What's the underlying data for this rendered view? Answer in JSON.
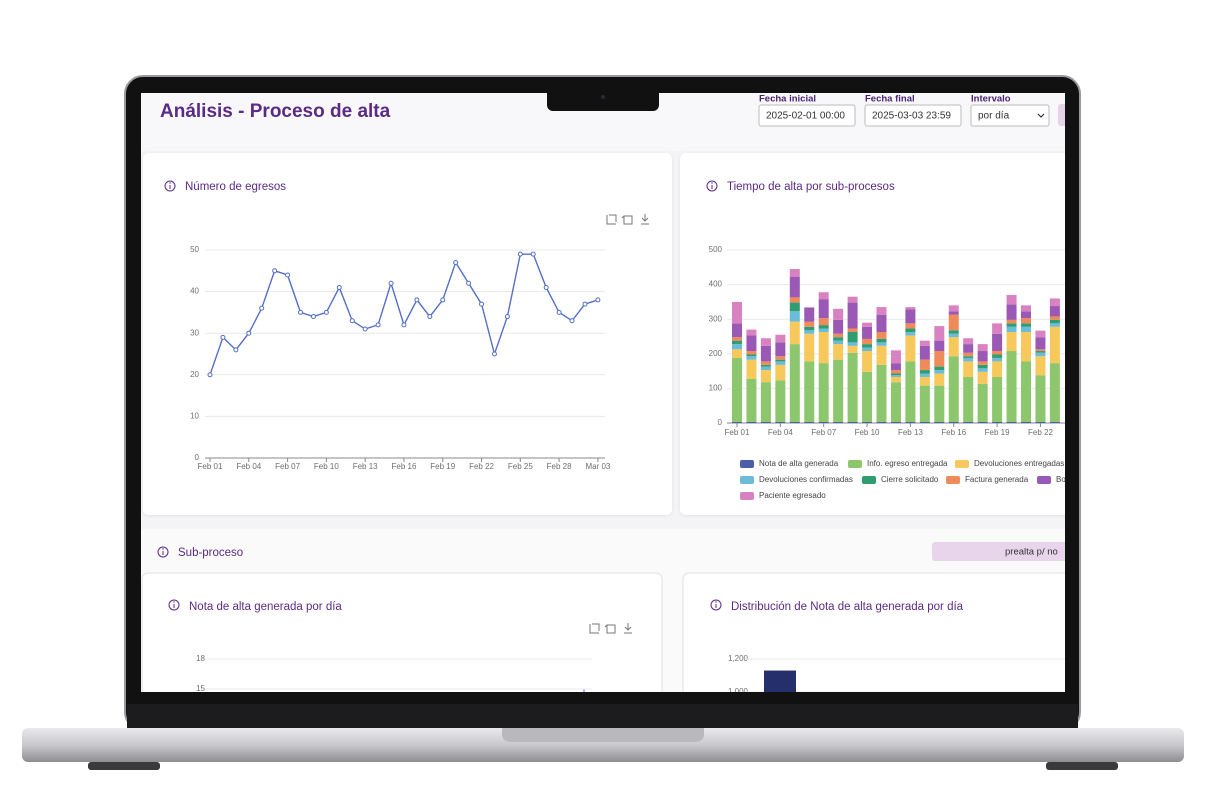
{
  "header": {
    "title": "Análisis - Proceso de alta",
    "fields": [
      {
        "label": "Fecha inicial",
        "value": "2025-02-01 00:00"
      },
      {
        "label": "Fecha final",
        "value": "2025-03-03 23:59"
      },
      {
        "label": "Intervalo",
        "value": "por día"
      }
    ]
  },
  "section": {
    "title": "Sub-proceso",
    "filter": "prealta p/ no"
  },
  "chart_data": [
    {
      "type": "line",
      "title": "Número de egresos",
      "color": "#5470c6",
      "categories": [
        "Feb 01",
        null,
        null,
        "Feb 04",
        null,
        null,
        "Feb 07",
        null,
        null,
        "Feb 10",
        null,
        null,
        "Feb 13",
        null,
        null,
        "Feb 16",
        null,
        null,
        "Feb 19",
        null,
        null,
        "Feb 22",
        null,
        null,
        "Feb 25",
        null,
        null,
        "Feb 28",
        null,
        null,
        "Mar 03"
      ],
      "values": [
        20,
        29,
        26,
        30,
        36,
        45,
        44,
        35,
        34,
        35,
        41,
        33,
        31,
        32,
        42,
        32,
        38,
        34,
        38,
        47,
        42,
        37,
        25,
        34,
        49,
        49,
        41,
        35,
        33,
        37,
        38
      ],
      "ylim": [
        0,
        50
      ],
      "yticks": [
        0,
        10,
        20,
        30,
        40,
        50
      ],
      "grid": true
    },
    {
      "type": "stacked_bar",
      "title": "Tiempo de alta por sub-procesos",
      "categories": [
        "Feb 01",
        null,
        null,
        "Feb 04",
        null,
        null,
        "Feb 07",
        null,
        null,
        "Feb 10",
        null,
        null,
        "Feb 13",
        null,
        null,
        "Feb 16",
        null,
        null,
        "Feb 19",
        null,
        null,
        "Feb 22",
        null
      ],
      "series": [
        {
          "name": "Nota de alta generada",
          "color": "#4a5fa8",
          "values": [
            3,
            3,
            3,
            3,
            3,
            3,
            3,
            3,
            3,
            3,
            3,
            3,
            3,
            3,
            3,
            3,
            3,
            3,
            3,
            3,
            3,
            3,
            3
          ]
        },
        {
          "name": "Info. egreso entregada",
          "color": "#8cc66d",
          "values": [
            185,
            125,
            115,
            120,
            225,
            175,
            170,
            180,
            200,
            145,
            165,
            115,
            175,
            105,
            105,
            190,
            130,
            110,
            130,
            205,
            175,
            135,
            170
          ]
        },
        {
          "name": "Devoluciones entregadas",
          "color": "#f7c95c",
          "values": [
            25,
            55,
            35,
            45,
            65,
            80,
            90,
            45,
            20,
            60,
            55,
            15,
            75,
            25,
            35,
            55,
            45,
            35,
            45,
            55,
            85,
            55,
            105
          ]
        },
        {
          "name": "Devoluciones confirmadas",
          "color": "#6cbcd9",
          "values": [
            15,
            10,
            10,
            10,
            30,
            10,
            10,
            10,
            10,
            10,
            10,
            5,
            10,
            10,
            10,
            10,
            10,
            10,
            10,
            15,
            15,
            10,
            10
          ]
        },
        {
          "name": "Cierre solicitado",
          "color": "#2e9e72",
          "values": [
            10,
            5,
            5,
            5,
            25,
            10,
            10,
            10,
            30,
            10,
            10,
            5,
            10,
            10,
            10,
            10,
            5,
            10,
            10,
            10,
            10,
            5,
            10
          ]
        },
        {
          "name": "Factura generada",
          "color": "#ef8a5a",
          "values": [
            10,
            10,
            10,
            10,
            15,
            15,
            20,
            10,
            10,
            15,
            20,
            10,
            15,
            30,
            45,
            45,
            10,
            10,
            10,
            10,
            15,
            5,
            10
          ]
        },
        {
          "name": "Bo",
          "color": "#9b59b6",
          "values": [
            40,
            45,
            45,
            40,
            60,
            40,
            55,
            40,
            75,
            35,
            50,
            20,
            40,
            40,
            30,
            10,
            25,
            30,
            50,
            45,
            20,
            35,
            30
          ]
        },
        {
          "name": "Paciente egresado",
          "color": "#d982c2",
          "values": [
            62,
            17,
            22,
            22,
            22,
            2,
            20,
            32,
            17,
            12,
            22,
            37,
            7,
            15,
            42,
            17,
            17,
            20,
            30,
            27,
            17,
            19,
            22
          ]
        }
      ],
      "ylim": [
        0,
        500
      ],
      "yticks": [
        0,
        100,
        200,
        300,
        400,
        500
      ],
      "grid": true
    },
    {
      "type": "line",
      "title": "Nota de alta generada por día",
      "yticks": [
        18,
        15
      ],
      "grid": true
    },
    {
      "type": "bar",
      "title": "Distribución de Nota de alta generada por día",
      "color": "#252f6b",
      "categories": [
        null
      ],
      "values": [
        1130
      ],
      "yticks": [
        {
          "value": 1200,
          "label": "1,200"
        },
        {
          "value": 1000,
          "label": "1,000"
        }
      ],
      "grid": true
    }
  ]
}
